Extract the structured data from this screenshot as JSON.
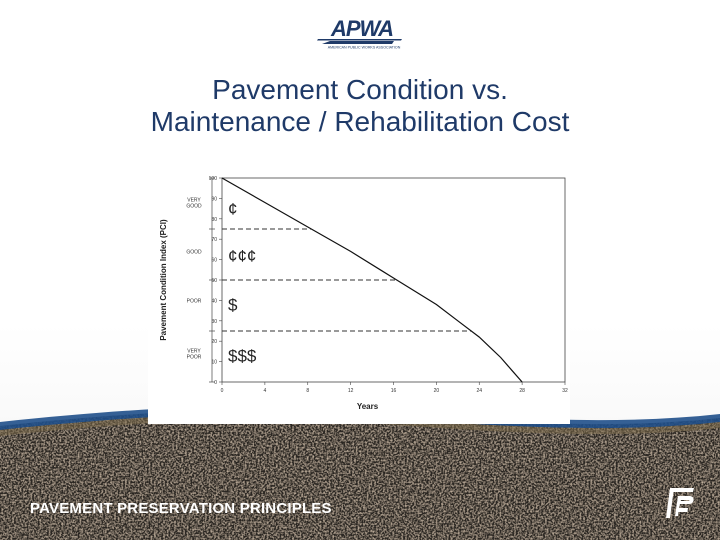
{
  "slide": {
    "logo_text": "APWA",
    "logo_subtext": "AMERICAN PUBLIC WORKS ASSOCIATION",
    "title_line1": "Pavement Condition vs.",
    "title_line2": "Maintenance / Rehabilitation Cost",
    "footer_text": "PAVEMENT PRESERVATION PRINCIPLES",
    "colors": {
      "title": "#1f3a68",
      "footer_text": "#ffffff",
      "band": "#1f4f8a"
    }
  },
  "chart_data": {
    "type": "line",
    "xlabel": "Years",
    "ylabel": "Pavement Condition Index (PCI)",
    "xlim": [
      0,
      32
    ],
    "ylim": [
      0,
      100
    ],
    "x_ticks": [
      0,
      4,
      8,
      12,
      16,
      20,
      24,
      28,
      32
    ],
    "y_ticks": [
      0,
      10,
      20,
      30,
      40,
      50,
      60,
      70,
      80,
      90,
      100
    ],
    "series": [
      {
        "x": [
          0,
          4,
          8,
          12,
          16,
          20,
          22,
          24,
          25,
          26,
          27,
          28
        ],
        "y": [
          100,
          88,
          76,
          64,
          51,
          38,
          30,
          22,
          17,
          12,
          6,
          0
        ]
      }
    ],
    "thresholds": [
      {
        "y": 75,
        "x_end": 8.3
      },
      {
        "y": 50,
        "x_end": 16.3
      },
      {
        "y": 25,
        "x_end": 23.3
      }
    ],
    "condition_bands": [
      {
        "label": "VERY GOOD",
        "y_center": 88
      },
      {
        "label": "GOOD",
        "y_center": 64
      },
      {
        "label": "POOR",
        "y_center": 40
      },
      {
        "label": "VERY POOR",
        "y_center": 14
      }
    ],
    "band_ticks": [
      100,
      75,
      50,
      25,
      0
    ],
    "cost_labels": [
      {
        "text": "¢",
        "y": 85
      },
      {
        "text": "¢¢¢",
        "y": 62
      },
      {
        "text": "$",
        "y": 38
      },
      {
        "text": "$$$",
        "y": 13
      }
    ],
    "grid": false,
    "legend": "none"
  }
}
